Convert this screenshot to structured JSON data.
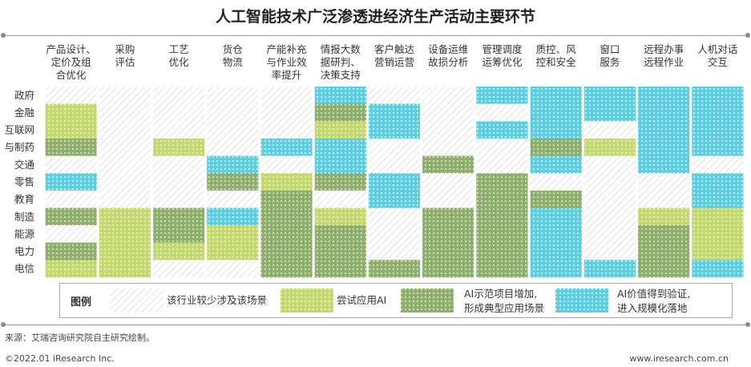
{
  "title": "人工智能技术广泛渗透进经济生产活动主要环节",
  "colors": {
    "rare": "#e8e8e8",
    "try": "#c5d86d",
    "demo": "#8fb06c",
    "scale": "#5ecfe0"
  },
  "chart_data": {
    "type": "heatmap",
    "columns": [
      [
        "产品设计、",
        "定价及组",
        "合优化"
      ],
      [
        "采购",
        "评估"
      ],
      [
        "工艺",
        "优化"
      ],
      [
        "货仓",
        "物流"
      ],
      [
        "产能补充",
        "与作业效",
        "率提升"
      ],
      [
        "情报大数",
        "据研判、",
        "决策支持"
      ],
      [
        "客户触达",
        "营销运营"
      ],
      [
        "设备运维",
        "故损分析"
      ],
      [
        "管理调度",
        "运筹优化"
      ],
      [
        "质控、风",
        "控和安全"
      ],
      [
        "窗口",
        "服务"
      ],
      [
        "远程办事",
        "远程作业"
      ],
      [
        "人机对话",
        "交互"
      ]
    ],
    "rows": [
      "政府",
      "金融",
      "互联网",
      "与制药",
      "交通",
      "零售",
      "教育",
      "制造",
      "能源",
      "电力",
      "电信"
    ],
    "levels": [
      "rare",
      "try",
      "demo",
      "scale"
    ],
    "cells": [
      [
        "rare",
        "rare",
        "rare",
        "rare",
        "rare",
        "scale",
        "rare",
        "rare",
        "scale",
        "scale",
        "scale",
        "scale",
        "scale"
      ],
      [
        "try",
        "rare",
        "rare",
        "rare",
        "rare",
        "demo",
        "scale",
        "rare",
        "rare",
        "scale",
        "scale",
        "scale",
        "scale"
      ],
      [
        "try",
        "rare",
        "rare",
        "rare",
        "rare",
        "try",
        "scale",
        "rare",
        "scale",
        "scale",
        "rare",
        "scale",
        "scale"
      ],
      [
        "demo",
        "rare",
        "try",
        "rare",
        "scale",
        "scale",
        "rare",
        "rare",
        "rare",
        "demo",
        "try",
        "scale",
        "scale"
      ],
      [
        "rare",
        "rare",
        "rare",
        "scale",
        "rare",
        "scale",
        "rare",
        "demo",
        "rare",
        "scale",
        "rare",
        "scale",
        "rare"
      ],
      [
        "scale",
        "rare",
        "rare",
        "demo",
        "try",
        "demo",
        "scale",
        "rare",
        "demo",
        "rare",
        "rare",
        "rare",
        "scale"
      ],
      [
        "rare",
        "rare",
        "rare",
        "rare",
        "demo",
        "rare",
        "scale",
        "rare",
        "demo",
        "demo",
        "rare",
        "rare",
        "scale"
      ],
      [
        "demo",
        "try",
        "demo",
        "scale",
        "demo",
        "try",
        "rare",
        "demo",
        "demo",
        "scale",
        "rare",
        "try",
        "try"
      ],
      [
        "rare",
        "try",
        "demo",
        "try",
        "demo",
        "demo",
        "rare",
        "demo",
        "demo",
        "scale",
        "rare",
        "demo",
        "try"
      ],
      [
        "demo",
        "try",
        "try",
        "try",
        "demo",
        "demo",
        "rare",
        "demo",
        "demo",
        "scale",
        "rare",
        "demo",
        "try"
      ],
      [
        "try",
        "try",
        "rare",
        "rare",
        "demo",
        "demo",
        "demo",
        "demo",
        "demo",
        "scale",
        "scale",
        "demo",
        "scale"
      ]
    ]
  },
  "legend": {
    "title": "图例",
    "items": [
      {
        "level": "rare",
        "lines": [
          "该行业较少涉及该场景"
        ]
      },
      {
        "level": "try",
        "lines": [
          "尝试应用AI"
        ]
      },
      {
        "level": "demo",
        "lines": [
          "AI示范项目增加,",
          "形成典型应用场景"
        ]
      },
      {
        "level": "scale",
        "lines": [
          "AI价值得到验证,",
          "进入规模化落地"
        ]
      }
    ]
  },
  "source": "来源：艾瑞咨询研究院自主研究绘制。",
  "footer_left": "©2022.01 iResearch Inc.",
  "footer_right": "www.iresearch.com.cn"
}
